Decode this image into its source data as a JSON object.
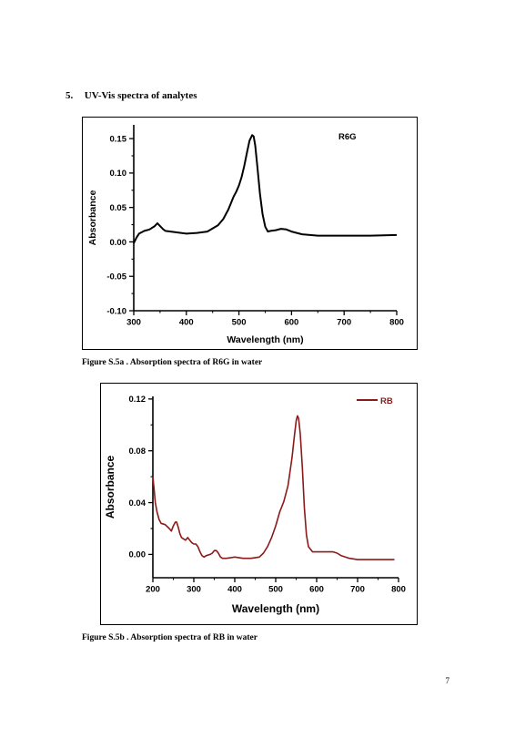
{
  "section": {
    "number": "5.",
    "title": "UV-Vis spectra of analytes"
  },
  "figure_a": {
    "caption": "Figure S.5a . Absorption spectra of R6G in water"
  },
  "figure_b": {
    "caption": "Figure S.5b . Absorption spectra of RB in water"
  },
  "page_number": "7",
  "chart_data": [
    {
      "type": "line",
      "xlabel": "Wavelength (nm)",
      "ylabel": "Absorbance",
      "xlim": [
        300,
        800
      ],
      "ylim": [
        -0.1,
        0.17
      ],
      "xticks": [
        300,
        400,
        500,
        600,
        700,
        800
      ],
      "yticks": [
        -0.1,
        -0.05,
        0.0,
        0.05,
        0.1,
        0.15
      ],
      "ytick_labels": [
        "-0.10",
        "-0.05",
        "0.00",
        "0.05",
        "0.10",
        "0.15"
      ],
      "label": "R6G",
      "legend_line": false,
      "color": "#000000",
      "series": [
        {
          "x": [
            300,
            305,
            310,
            320,
            330,
            340,
            345,
            350,
            355,
            360,
            370,
            380,
            400,
            420,
            440,
            460,
            470,
            480,
            490,
            495,
            500,
            505,
            510,
            515,
            520,
            525,
            528,
            531,
            535,
            540,
            545,
            550,
            555,
            560,
            570,
            580,
            590,
            600,
            620,
            650,
            700,
            750,
            800
          ],
          "y": [
            -0.002,
            0.006,
            0.012,
            0.016,
            0.018,
            0.023,
            0.027,
            0.023,
            0.019,
            0.016,
            0.015,
            0.014,
            0.012,
            0.013,
            0.015,
            0.024,
            0.033,
            0.047,
            0.066,
            0.073,
            0.082,
            0.094,
            0.11,
            0.129,
            0.147,
            0.155,
            0.153,
            0.14,
            0.11,
            0.07,
            0.04,
            0.022,
            0.015,
            0.016,
            0.017,
            0.019,
            0.018,
            0.015,
            0.011,
            0.009,
            0.009,
            0.009,
            0.01
          ]
        }
      ]
    },
    {
      "type": "line",
      "xlabel": "Wavelength (nm)",
      "ylabel": "Absorbance",
      "xlim": [
        200,
        800
      ],
      "ylim": [
        -0.018,
        0.122
      ],
      "xticks": [
        200,
        300,
        400,
        500,
        600,
        700,
        800
      ],
      "yticks": [
        0.0,
        0.04,
        0.08,
        0.12
      ],
      "ytick_labels": [
        "0.00",
        "0.04",
        "0.08",
        "0.12"
      ],
      "label": "RB",
      "legend_line": true,
      "color": "#8b1a1a",
      "series": [
        {
          "name": "RB",
          "x": [
            200,
            203,
            206,
            210,
            215,
            220,
            230,
            240,
            245,
            250,
            255,
            258,
            262,
            266,
            270,
            275,
            280,
            285,
            290,
            295,
            300,
            305,
            310,
            315,
            320,
            325,
            330,
            340,
            345,
            350,
            355,
            360,
            365,
            370,
            380,
            400,
            420,
            440,
            460,
            470,
            480,
            490,
            500,
            510,
            515,
            520,
            530,
            540,
            545,
            550,
            553,
            556,
            560,
            565,
            570,
            575,
            580,
            590,
            600,
            620,
            640,
            650,
            660,
            680,
            700,
            720,
            750,
            790
          ],
          "y": [
            0.06,
            0.05,
            0.04,
            0.033,
            0.027,
            0.024,
            0.023,
            0.02,
            0.018,
            0.022,
            0.025,
            0.025,
            0.021,
            0.016,
            0.013,
            0.012,
            0.011,
            0.013,
            0.011,
            0.009,
            0.008,
            0.008,
            0.006,
            0.002,
            -0.001,
            -0.002,
            -0.001,
            0.0,
            0.001,
            0.003,
            0.003,
            0.001,
            -0.002,
            -0.003,
            -0.003,
            -0.002,
            -0.003,
            -0.003,
            -0.002,
            0.001,
            0.006,
            0.013,
            0.022,
            0.033,
            0.037,
            0.041,
            0.053,
            0.075,
            0.09,
            0.103,
            0.107,
            0.105,
            0.093,
            0.067,
            0.036,
            0.015,
            0.006,
            0.002,
            0.002,
            0.002,
            0.002,
            0.001,
            -0.001,
            -0.003,
            -0.004,
            -0.004,
            -0.004,
            -0.004
          ]
        }
      ]
    }
  ]
}
